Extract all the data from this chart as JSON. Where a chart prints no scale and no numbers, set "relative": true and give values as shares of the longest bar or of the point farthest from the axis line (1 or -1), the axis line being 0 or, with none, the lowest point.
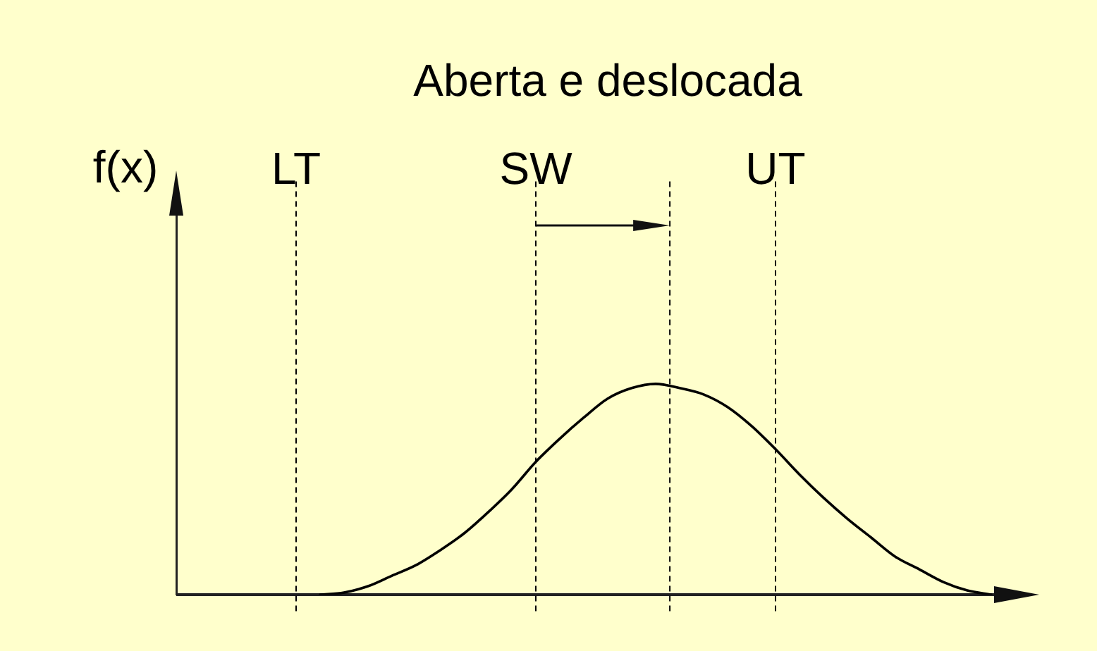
{
  "chart_data": {
    "type": "line",
    "title": "Aberta e deslocada",
    "ylabel": "f(x)",
    "relative": true,
    "categories": [
      null,
      null,
      null,
      null,
      null,
      "LT",
      null,
      null,
      null,
      null,
      null,
      null,
      null,
      null,
      null,
      "SW",
      null,
      null,
      null,
      null,
      null,
      null,
      null,
      null,
      null,
      "UT",
      null,
      null,
      null,
      null,
      null,
      null,
      null,
      null,
      null,
      null,
      null
    ],
    "values": [
      null,
      null,
      null,
      null,
      null,
      null,
      0,
      0.01,
      0.04,
      0.09,
      0.14,
      0.21,
      0.29,
      0.39,
      0.5,
      0.63,
      0.74,
      0.84,
      0.93,
      0.98,
      1,
      0.98,
      0.95,
      0.89,
      0.8,
      0.69,
      0.57,
      0.46,
      0.36,
      0.27,
      0.18,
      0.12,
      0.06,
      0.02,
      0,
      null,
      null
    ],
    "color": "#000000",
    "tick_labels": "x",
    "ref_lines": [
      {
        "axis": "x",
        "value": "LT",
        "color": "#000000",
        "line_style": "dashed"
      },
      {
        "axis": "x",
        "value": "SW",
        "color": "#000000",
        "line_style": "dashed"
      },
      {
        "axis": "x",
        "value": "UT",
        "color": "#000000",
        "line_style": "dashed"
      }
    ]
  }
}
